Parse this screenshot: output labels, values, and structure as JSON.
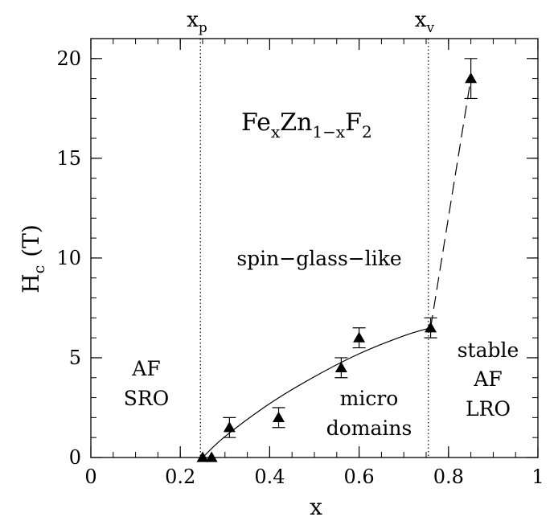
{
  "chart_data": {
    "type": "scatter",
    "xlabel": "x",
    "ylabel": "H",
    "ylabel_sub": "c",
    "ylabel_unit": "(T)",
    "xlim": [
      0,
      1
    ],
    "ylim": [
      0,
      21
    ],
    "x_ticks": [
      0,
      0.2,
      0.4,
      0.6,
      0.8,
      1
    ],
    "x_tick_labels": [
      "0",
      "0.2",
      "0.4",
      "0.6",
      "0.8",
      "1"
    ],
    "y_ticks": [
      0,
      5,
      10,
      15,
      20
    ],
    "y_tick_labels": [
      "0",
      "5",
      "10",
      "15",
      "20"
    ],
    "x_minor_step": 0.05,
    "y_minor_step": 1,
    "grid": false,
    "vlines": [
      {
        "x": 0.245,
        "label": "x",
        "sub": "p",
        "style": "dotted"
      },
      {
        "x": 0.755,
        "label": "x",
        "sub": "v",
        "style": "dotted"
      }
    ],
    "series": [
      {
        "marker": "filled-triangle",
        "points": [
          {
            "x": 0.25,
            "y": 0.0,
            "err": 0
          },
          {
            "x": 0.27,
            "y": 0.0,
            "err": 0
          },
          {
            "x": 0.31,
            "y": 1.5,
            "err": 0.5
          },
          {
            "x": 0.42,
            "y": 2.0,
            "err": 0.5
          },
          {
            "x": 0.56,
            "y": 4.5,
            "err": 0.5
          },
          {
            "x": 0.6,
            "y": 6.0,
            "err": 0.5
          },
          {
            "x": 0.76,
            "y": 6.5,
            "err": 0.5
          },
          {
            "x": 0.85,
            "y": 19.0,
            "err": 1.0
          }
        ]
      }
    ],
    "fit_curve": {
      "style": "solid",
      "points": [
        [
          0.25,
          0.0
        ],
        [
          0.3,
          1.05
        ],
        [
          0.4,
          2.7
        ],
        [
          0.5,
          4.05
        ],
        [
          0.6,
          5.2
        ],
        [
          0.7,
          6.1
        ],
        [
          0.76,
          6.5
        ]
      ]
    },
    "dashed_line": {
      "style": "dashed",
      "points": [
        [
          0.76,
          6.5
        ],
        [
          0.85,
          19.0
        ]
      ]
    },
    "annotations": {
      "formula": {
        "parts": [
          "Fe",
          "x",
          "Zn",
          "1−x",
          "F",
          "2"
        ]
      },
      "spin_glass": "spin−glass−like",
      "af_sro": [
        "AF",
        "SRO"
      ],
      "micro_domains": [
        "micro",
        "domains"
      ],
      "stable_af_lro": [
        "stable",
        "AF",
        "LRO"
      ]
    }
  }
}
